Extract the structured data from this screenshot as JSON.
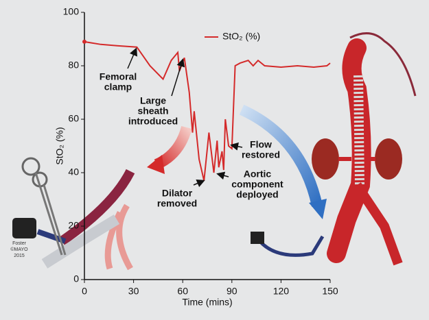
{
  "chart_data": {
    "type": "line",
    "xlabel": "Time (mins)",
    "ylabel": "StO₂ (%)",
    "xlim": [
      0,
      150
    ],
    "ylim": [
      0,
      100
    ],
    "xticks": [
      0,
      30,
      60,
      90,
      120,
      150
    ],
    "yticks": [
      0,
      20,
      40,
      60,
      80,
      100
    ],
    "legend": "top",
    "series": [
      {
        "name": "StO₂ (%)",
        "color": "#d42a2a",
        "x": [
          0,
          10,
          20,
          32,
          40,
          48,
          53,
          57,
          58,
          61,
          64,
          66,
          67,
          70,
          73,
          76,
          78,
          79,
          81,
          82,
          84,
          85,
          86,
          88,
          90,
          92,
          95,
          100,
          103,
          106,
          110,
          120,
          130,
          140,
          148,
          150
        ],
        "values": [
          89,
          88,
          87.5,
          87,
          80,
          75,
          82,
          85,
          78,
          83,
          70,
          55,
          63,
          45,
          37,
          55,
          45,
          40,
          52,
          42,
          48,
          41,
          60,
          50,
          49,
          80,
          81,
          82,
          80,
          82,
          80,
          79.5,
          80,
          79.5,
          80,
          81
        ]
      }
    ],
    "annotations": [
      {
        "lines": [
          "Femoral",
          "clamp"
        ]
      },
      {
        "lines": [
          "Large",
          "sheath",
          "introduced"
        ]
      },
      {
        "lines": [
          "Dilator",
          "removed"
        ]
      },
      {
        "lines": [
          "Aortic",
          "component",
          "deployed"
        ]
      },
      {
        "lines": [
          "Flow",
          "restored"
        ]
      },
      {
        "lines": [
          "Foster",
          "©MAYO",
          "2015"
        ]
      }
    ]
  }
}
